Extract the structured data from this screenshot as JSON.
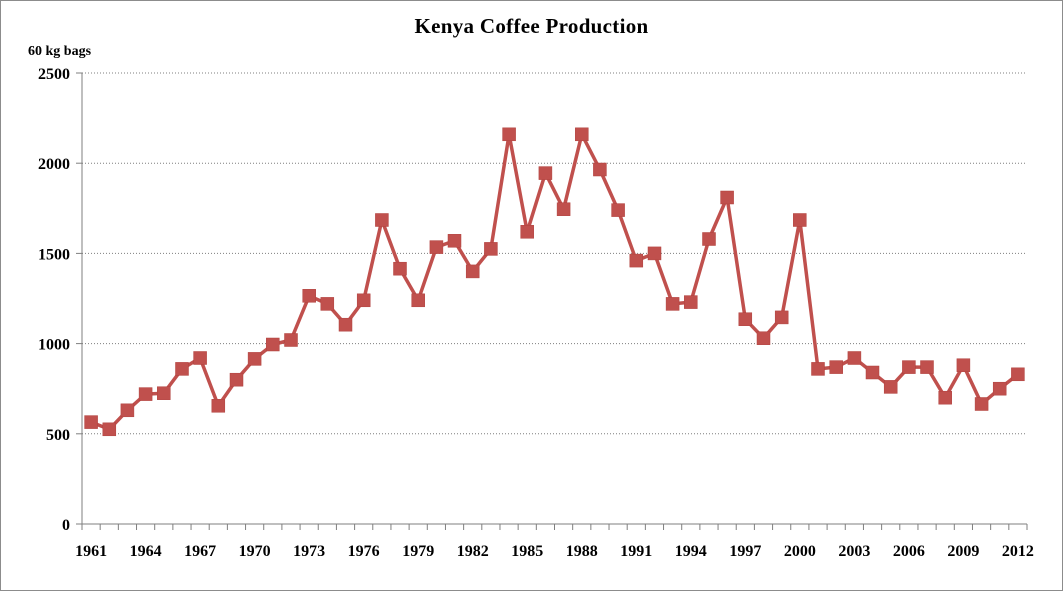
{
  "chart_data": {
    "type": "line",
    "title": "Kenya Coffee Production",
    "ylabel": "60 kg bags",
    "xlabel": "",
    "ylim": [
      0,
      2500
    ],
    "yticks": [
      0,
      500,
      1000,
      1500,
      2000,
      2500
    ],
    "xtick_labels": [
      "1961",
      "1964",
      "1967",
      "1970",
      "1973",
      "1976",
      "1979",
      "1982",
      "1985",
      "1988",
      "1991",
      "1994",
      "1997",
      "2000",
      "2003",
      "2006",
      "2009",
      "2012"
    ],
    "grid": "horizontal dotted",
    "legend": "none",
    "series_color": "#c0504d",
    "series": [
      {
        "x": [
          1961,
          1962,
          1963,
          1964,
          1965,
          1966,
          1967,
          1968,
          1969,
          1970,
          1971,
          1972,
          1973,
          1974,
          1975,
          1976,
          1977,
          1978,
          1979,
          1980,
          1981,
          1982,
          1983,
          1984,
          1985,
          1986,
          1987,
          1988,
          1989,
          1990,
          1991,
          1992,
          1993,
          1994,
          1995,
          1996,
          1997,
          1998,
          1999,
          2000,
          2001,
          2002,
          2003,
          2004,
          2005,
          2006,
          2007,
          2008,
          2009,
          2010,
          2011,
          2012
        ],
        "values": [
          565,
          525,
          630,
          720,
          725,
          860,
          920,
          655,
          800,
          915,
          995,
          1020,
          1265,
          1220,
          1105,
          1240,
          1685,
          1415,
          1240,
          1535,
          1570,
          1400,
          1525,
          2160,
          1620,
          1945,
          1745,
          2160,
          1965,
          1740,
          1460,
          1500,
          1220,
          1230,
          1580,
          1810,
          1135,
          1030,
          1145,
          1685,
          860,
          870,
          920,
          840,
          760,
          870,
          870,
          700,
          880,
          665,
          750,
          830
        ]
      }
    ]
  }
}
